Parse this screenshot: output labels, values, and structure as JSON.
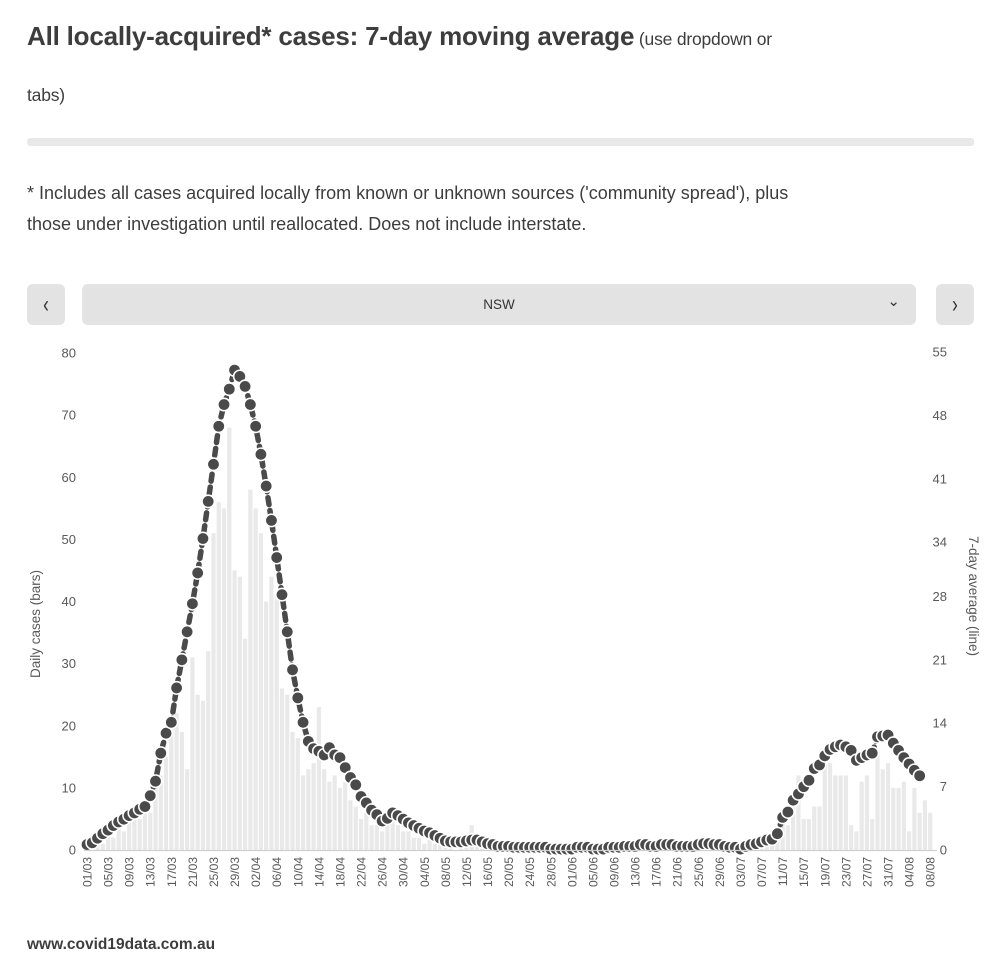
{
  "header": {
    "title": "All locally-acquired* cases: 7-day moving average",
    "title_suffix_line1": " (use dropdown or",
    "title_suffix_line2": "tabs)"
  },
  "footnote": {
    "line1": "* Includes all cases acquired locally from known or unknown sources ('community spread'), plus",
    "line2": "those under investigation until reallocated. Does not include interstate."
  },
  "controls": {
    "prev_icon": "‹",
    "next_icon": "›",
    "region_selected": "NSW",
    "chevron_down": "⌄"
  },
  "footer": {
    "site": "www.covid19data.com.au"
  },
  "colors": {
    "bar": "#e9e9e9",
    "line": "#4a4a4a",
    "dot_halo": "#ffffff",
    "axis_line": "#d0d0d0",
    "tick_text": "#595959",
    "button_bg": "#e3e3e3"
  },
  "chart_data": {
    "type": "bar+line",
    "title": "All locally-acquired cases: 7-day moving average (NSW)",
    "start_date": "01/03",
    "end_date": "08/08",
    "x_tick_labels": [
      "01/03",
      "05/03",
      "09/03",
      "13/03",
      "17/03",
      "21/03",
      "25/03",
      "29/03",
      "02/04",
      "06/04",
      "10/04",
      "14/04",
      "18/04",
      "22/04",
      "26/04",
      "30/04",
      "04/05",
      "08/05",
      "12/05",
      "16/05",
      "20/05",
      "24/05",
      "28/05",
      "01/06",
      "05/06",
      "09/06",
      "13/06",
      "17/06",
      "21/06",
      "25/06",
      "29/06",
      "03/07",
      "07/07",
      "11/07",
      "15/07",
      "19/07",
      "23/07",
      "27/07",
      "31/07",
      "04/08",
      "08/08"
    ],
    "x_tick_every_n_days": 4,
    "left_axis": {
      "label": "Daily cases (bars)",
      "range": [
        0,
        80
      ],
      "ticks": [
        0,
        10,
        20,
        30,
        40,
        50,
        60,
        70,
        80
      ]
    },
    "right_axis": {
      "label": "7-day average (line)",
      "range": [
        0,
        55
      ],
      "ticks": [
        0,
        7,
        14,
        21,
        28,
        34,
        41,
        48,
        55
      ]
    },
    "grid": false,
    "legend": "none",
    "series": [
      {
        "name": "Daily cases",
        "type": "bar",
        "axis": "left",
        "values": [
          1,
          0,
          2,
          1,
          3,
          2,
          4,
          3,
          5,
          6,
          5,
          8,
          6,
          10,
          12,
          15,
          20,
          22,
          19,
          13,
          31,
          25,
          24,
          32,
          51,
          56,
          55,
          68,
          45,
          44,
          34,
          58,
          55,
          51,
          40,
          44,
          41,
          26,
          25,
          19,
          18,
          12,
          13,
          14,
          23,
          13,
          11,
          12,
          10,
          11,
          8,
          7,
          5,
          6,
          4,
          4,
          3,
          5,
          6,
          4,
          3,
          3,
          2,
          2,
          1,
          2,
          1,
          1,
          1,
          1,
          0,
          1,
          2,
          4,
          2,
          1,
          0,
          0,
          1,
          0,
          1,
          0,
          0,
          0,
          1,
          0,
          0,
          1,
          0,
          0,
          0,
          0,
          0,
          0,
          1,
          0,
          0,
          0,
          0,
          1,
          0,
          0,
          1,
          1,
          0,
          1,
          1,
          0,
          0,
          1,
          1,
          0,
          0,
          1,
          0,
          0,
          1,
          1,
          1,
          0,
          1,
          0,
          0,
          1,
          0,
          1,
          1,
          1,
          2,
          2,
          1,
          3,
          5,
          4,
          8,
          12,
          5,
          5,
          7,
          7,
          14,
          14,
          12,
          12,
          12,
          4,
          3,
          11,
          12,
          5,
          16,
          13,
          14,
          10,
          10,
          11,
          3,
          10,
          6,
          8,
          6
        ]
      },
      {
        "name": "7-day average",
        "type": "line",
        "axis": "right",
        "values": [
          0.6,
          0.8,
          1.3,
          1.8,
          2.2,
          2.7,
          3.1,
          3.4,
          3.8,
          4.1,
          4.5,
          4.8,
          6.0,
          7.6,
          10.7,
          12.9,
          14.1,
          17.9,
          21.0,
          24.1,
          27.2,
          30.6,
          34.4,
          38.5,
          42.6,
          46.8,
          49.2,
          50.9,
          53.0,
          52.3,
          51.2,
          49.2,
          46.8,
          43.7,
          40.2,
          36.4,
          32.3,
          28.2,
          24.1,
          19.9,
          16.8,
          14.1,
          12.0,
          11.2,
          10.9,
          10.5,
          11.3,
          10.5,
          10.2,
          9.1,
          8.0,
          7.2,
          5.9,
          5.2,
          4.4,
          3.9,
          3.2,
          3.5,
          4.1,
          3.8,
          3.4,
          3.0,
          2.7,
          2.4,
          2.1,
          1.9,
          1.6,
          1.3,
          1.0,
          0.9,
          0.9,
          0.9,
          1.0,
          1.1,
          1.1,
          0.9,
          0.7,
          0.6,
          0.4,
          0.4,
          0.4,
          0.3,
          0.3,
          0.3,
          0.3,
          0.3,
          0.3,
          0.3,
          0.1,
          0.1,
          0.1,
          0.1,
          0.1,
          0.3,
          0.3,
          0.3,
          0.1,
          0.1,
          0.1,
          0.3,
          0.3,
          0.3,
          0.4,
          0.4,
          0.4,
          0.6,
          0.6,
          0.4,
          0.4,
          0.6,
          0.6,
          0.6,
          0.4,
          0.4,
          0.4,
          0.4,
          0.6,
          0.7,
          0.7,
          0.6,
          0.6,
          0.4,
          0.3,
          0.3,
          0.1,
          0.4,
          0.6,
          0.7,
          0.9,
          1.1,
          1.2,
          1.8,
          3.6,
          4.2,
          5.5,
          6.2,
          7.0,
          7.7,
          9.0,
          9.4,
          10.4,
          11.1,
          11.4,
          11.6,
          11.4,
          11.0,
          9.9,
          10.2,
          10.5,
          10.7,
          12.5,
          12.6,
          12.7,
          11.8,
          11.0,
          10.2,
          9.5,
          8.8,
          8.2,
          null,
          null
        ]
      }
    ]
  }
}
